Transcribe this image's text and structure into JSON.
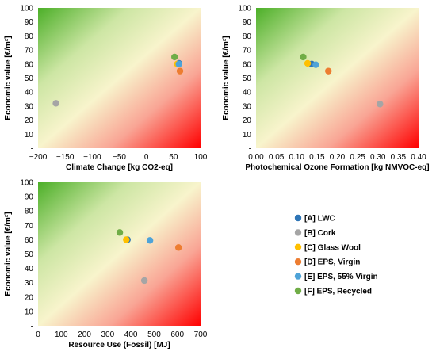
{
  "chart_data": [
    {
      "type": "scatter",
      "xlabel": "Climate Change [kg CO2-eq]",
      "ylabel": "Economic value [€/m²]",
      "xlim": [
        -200,
        100
      ],
      "ylim": [
        0,
        100
      ],
      "x_ticks": [
        "−200",
        "−150",
        "−100",
        "−50",
        "0",
        "50",
        "100"
      ],
      "y_ticks": [
        "-",
        "10",
        "20",
        "30",
        "40",
        "50",
        "60",
        "70",
        "80",
        "90",
        "100"
      ],
      "series": [
        {
          "name": "[A] LWC",
          "x": [
            60
          ],
          "y": [
            60.5
          ]
        },
        {
          "name": "[B] Cork",
          "x": [
            -167
          ],
          "y": [
            32
          ]
        },
        {
          "name": "[C] Glass Wool",
          "x": [
            57
          ],
          "y": [
            60
          ]
        },
        {
          "name": "[D] EPS, Virgin",
          "x": [
            62
          ],
          "y": [
            55
          ]
        },
        {
          "name": "[E] EPS, 55% Virgin",
          "x": [
            60
          ],
          "y": [
            60
          ]
        },
        {
          "name": "[F] EPS, Recycled",
          "x": [
            52
          ],
          "y": [
            65
          ]
        }
      ]
    },
    {
      "type": "scatter",
      "xlabel": "Photochemical Ozone Formation [kg NMVOC-eq]",
      "ylabel": "Economic value [€/m²]",
      "xlim": [
        0,
        0.4
      ],
      "ylim": [
        0,
        100
      ],
      "x_ticks": [
        "0.00",
        "0.05",
        "0.10",
        "0.15",
        "0.20",
        "0.25",
        "0.30",
        "0.35",
        "0.40"
      ],
      "y_ticks": [
        "-",
        "10",
        "20",
        "30",
        "40",
        "50",
        "60",
        "70",
        "80",
        "90",
        "100"
      ],
      "series": [
        {
          "name": "[A] LWC",
          "x": [
            0.137
          ],
          "y": [
            60
          ]
        },
        {
          "name": "[B] Cork",
          "x": [
            0.305
          ],
          "y": [
            31.5
          ]
        },
        {
          "name": "[C] Glass Wool",
          "x": [
            0.127
          ],
          "y": [
            60.5
          ]
        },
        {
          "name": "[D] EPS, Virgin",
          "x": [
            0.178
          ],
          "y": [
            55
          ]
        },
        {
          "name": "[E] EPS, 55% Virgin",
          "x": [
            0.147
          ],
          "y": [
            59.5
          ]
        },
        {
          "name": "[F] EPS, Recycled",
          "x": [
            0.116
          ],
          "y": [
            65
          ]
        }
      ]
    },
    {
      "type": "scatter",
      "xlabel": "Resource Use (Fossil) [MJ]",
      "ylabel": "Economic value [€/m²]",
      "xlim": [
        0,
        700
      ],
      "ylim": [
        0,
        100
      ],
      "x_ticks": [
        "0",
        "100",
        "200",
        "300",
        "400",
        "500",
        "600",
        "700"
      ],
      "y_ticks": [
        "-",
        "10",
        "20",
        "30",
        "40",
        "50",
        "60",
        "70",
        "80",
        "90",
        "100"
      ],
      "series": [
        {
          "name": "[A] LWC",
          "x": [
            385
          ],
          "y": [
            60
          ]
        },
        {
          "name": "[B] Cork",
          "x": [
            458
          ],
          "y": [
            31.5
          ]
        },
        {
          "name": "[C] Glass Wool",
          "x": [
            380
          ],
          "y": [
            60
          ]
        },
        {
          "name": "[D] EPS, Virgin",
          "x": [
            605
          ],
          "y": [
            54.5
          ]
        },
        {
          "name": "[E] EPS, 55% Virgin",
          "x": [
            482
          ],
          "y": [
            59.5
          ]
        },
        {
          "name": "[F] EPS, Recycled",
          "x": [
            352
          ],
          "y": [
            65
          ]
        }
      ]
    }
  ],
  "legend": {
    "items": [
      {
        "label": "[A] LWC",
        "color": "#2e75b6"
      },
      {
        "label": "[B] Cork",
        "color": "#a5a5a5"
      },
      {
        "label": "[C] Glass Wool",
        "color": "#ffc000"
      },
      {
        "label": "[D] EPS, Virgin",
        "color": "#ed7d31"
      },
      {
        "label": "[E] EPS, 55% Virgin",
        "color": "#4ea3d8"
      },
      {
        "label": "[F] EPS, Recycled",
        "color": "#70ad47"
      }
    ]
  },
  "colors": {
    "gradient_green": "#4caf28",
    "gradient_mid": "#f8f4cc",
    "gradient_red": "#ff0000"
  }
}
